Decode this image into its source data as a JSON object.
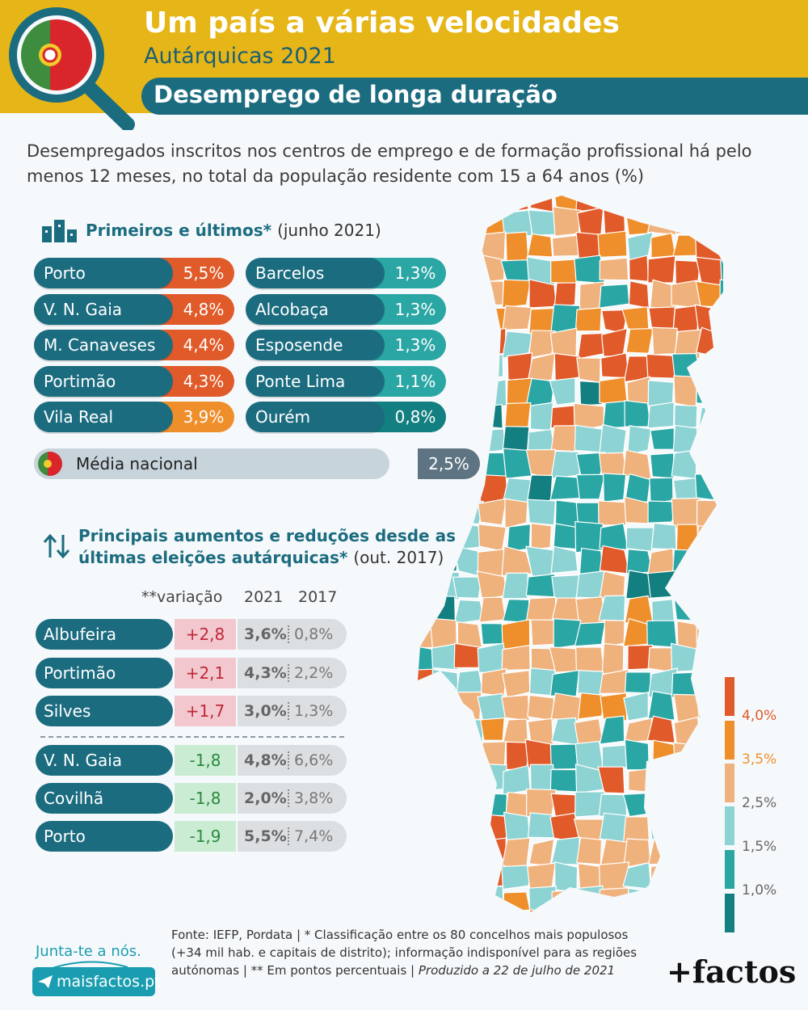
{
  "header": {
    "title": "Um país a várias velocidades",
    "subtitle": "Autárquicas 2021",
    "topic": "Desemprego de longa duração"
  },
  "intro": "Desempregados inscritos nos centros de emprego e de formação profissional há pelo menos 12 meses, no total da população residente com 15 a 64 anos (%)",
  "ranking": {
    "title": "Primeiros e últimos*",
    "title_note": "(junho 2021)",
    "national_label": "Média nacional",
    "national_value": "2,5%"
  },
  "changes": {
    "title_line1": "Principais aumentos e reduções desde as",
    "title_line2": "últimas eleições autárquicas*",
    "title_note": "(out. 2017)",
    "col_var": "**variação",
    "col_2021": "2021",
    "col_2017": "2017"
  },
  "chart_data": [
    {
      "type": "bar",
      "title": "Primeiros e últimos* (junho 2021)",
      "series": [
        {
          "name": "Primeiros",
          "categories": [
            "Porto",
            "V. N. Gaia",
            "M. Canaveses",
            "Portimão",
            "Vila Real"
          ],
          "values": [
            5.5,
            4.8,
            4.4,
            4.3,
            3.9
          ],
          "labels": [
            "5,5%",
            "4,8%",
            "4,4%",
            "4,3%",
            "3,9%"
          ]
        },
        {
          "name": "Últimos",
          "categories": [
            "Barcelos",
            "Alcobaça",
            "Esposende",
            "Ponte Lima",
            "Ourém"
          ],
          "values": [
            1.3,
            1.3,
            1.3,
            1.1,
            0.8
          ],
          "labels": [
            "1,3%",
            "1,3%",
            "1,3%",
            "1,1%",
            "0,8%"
          ]
        }
      ]
    },
    {
      "type": "table",
      "title": "Principais aumentos e reduções desde as últimas eleições autárquicas* (out. 2017)",
      "columns": [
        "**variação",
        "2021",
        "2017"
      ],
      "rows": [
        {
          "name": "Albufeira",
          "var": "+2,8",
          "y2021": "3,6%",
          "y2017": "0,8%"
        },
        {
          "name": "Portimão",
          "var": "+2,1",
          "y2021": "4,3%",
          "y2017": "2,2%"
        },
        {
          "name": "Silves",
          "var": "+1,7",
          "y2021": "3,0%",
          "y2017": "1,3%"
        },
        {
          "name": "V. N. Gaia",
          "var": "-1,8",
          "y2021": "4,8%",
          "y2017": "6,6%"
        },
        {
          "name": "Covilhã",
          "var": "-1,8",
          "y2021": "2,0%",
          "y2017": "3,8%"
        },
        {
          "name": "Porto",
          "var": "-1,9",
          "y2021": "5,5%",
          "y2017": "7,4%"
        }
      ]
    }
  ],
  "legend": {
    "labels": [
      "4,0%",
      "3,5%",
      "2,5%",
      "1,5%",
      "1,0%"
    ],
    "colors": [
      "#e05a2a",
      "#ef8f2c",
      "#f0b27d",
      "#8dd3d4",
      "#2aa6a4",
      "#137f80"
    ]
  },
  "colors": {
    "high": "#e05a2a",
    "mid_high": "#ef8f2c",
    "low": "#2aa6a4",
    "lowest": "#137f80",
    "primary": "#1c6c80",
    "increase_bg": "#f2c8ce",
    "increase_text": "#c0283b",
    "decrease_bg": "#c9ecd2",
    "decrease_text": "#2b8a3e"
  },
  "footer": {
    "source": "Fonte: IEFP, Pordata | * Classificação entre os 80 concelhos mais populosos (+34 mil hab. e capitais de distrito); informação indisponível para as regiões autónomas | ** Em pontos percentuais |",
    "produced": "Produzido a 22 de julho de 2021",
    "join": "Junta-te a nós.",
    "site": "maisfactos.pt",
    "brand": "+factos"
  }
}
